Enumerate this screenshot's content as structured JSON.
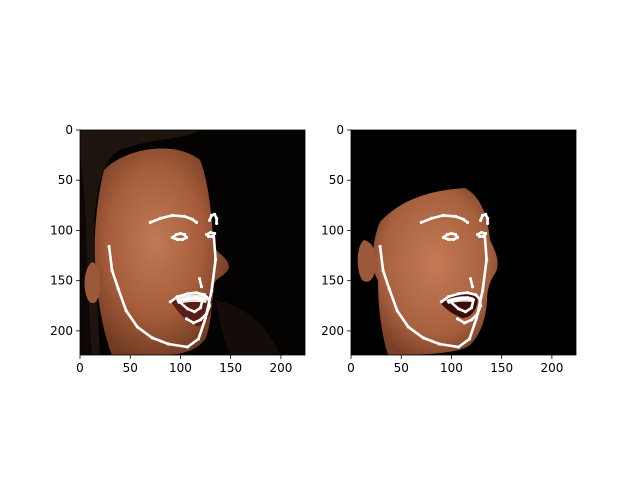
{
  "figure": {
    "background": "#ffffff"
  },
  "chart_data": [
    {
      "type": "image",
      "panel": "left",
      "content": "photograph of face with facial landmark overlay",
      "xlim": [
        0,
        224
      ],
      "ylim": [
        224,
        0
      ],
      "xticks": [
        0,
        50,
        100,
        150,
        200
      ],
      "yticks": [
        0,
        50,
        100,
        150,
        200
      ],
      "xtick_labels": [
        "0",
        "50",
        "100",
        "150",
        "200"
      ],
      "ytick_labels": [
        "0",
        "50",
        "100",
        "150",
        "200"
      ],
      "landmark_color": "#ffffff",
      "landmarks": {
        "jaw": [
          [
            29,
            116
          ],
          [
            32,
            140
          ],
          [
            38,
            158
          ],
          [
            46,
            180
          ],
          [
            57,
            196
          ],
          [
            72,
            207
          ],
          [
            88,
            213
          ],
          [
            107,
            216
          ],
          [
            118,
            208
          ],
          [
            125,
            187
          ],
          [
            131,
            160
          ],
          [
            135,
            129
          ],
          [
            133,
            103
          ]
        ],
        "brow_right": [
          [
            70,
            92
          ],
          [
            80,
            88
          ],
          [
            92,
            85
          ],
          [
            104,
            86
          ],
          [
            112,
            89
          ],
          [
            116,
            92
          ]
        ],
        "brow_left": [
          [
            129,
            90
          ],
          [
            131,
            85
          ],
          [
            134,
            84
          ],
          [
            136,
            88
          ],
          [
            136,
            93
          ]
        ],
        "eye_right": [
          [
            92,
            107
          ],
          [
            96,
            104
          ],
          [
            100,
            103
          ],
          [
            104,
            104
          ],
          [
            106,
            107
          ],
          [
            102,
            109
          ],
          [
            97,
            109
          ]
        ],
        "eye_left": [
          [
            126,
            104
          ],
          [
            130,
            102
          ],
          [
            134,
            103
          ],
          [
            132,
            106
          ],
          [
            128,
            106
          ]
        ],
        "nose": [
          [
            119,
            148
          ],
          [
            121,
            156
          ]
        ],
        "mouth_outer": [
          [
            90,
            171
          ],
          [
            97,
            166
          ],
          [
            107,
            163
          ],
          [
            116,
            162
          ],
          [
            124,
            164
          ],
          [
            128,
            168
          ],
          [
            129,
            175
          ],
          [
            126,
            183
          ],
          [
            120,
            189
          ],
          [
            113,
            192
          ],
          [
            106,
            188
          ]
        ],
        "mouth_inner": [
          [
            98,
            170
          ],
          [
            107,
            168
          ],
          [
            116,
            167
          ],
          [
            122,
            169
          ],
          [
            120,
            177
          ],
          [
            114,
            181
          ],
          [
            107,
            178
          ]
        ]
      }
    },
    {
      "type": "image",
      "panel": "right",
      "content": "3D face reconstruction render with facial landmark overlay",
      "xlim": [
        0,
        224
      ],
      "ylim": [
        224,
        0
      ],
      "xticks": [
        0,
        50,
        100,
        150,
        200
      ],
      "yticks": [
        0,
        50,
        100,
        150,
        200
      ],
      "xtick_labels": [
        "0",
        "50",
        "100",
        "150",
        "200"
      ],
      "ytick_labels": [
        "0",
        "50",
        "100",
        "150",
        "200"
      ],
      "landmark_color": "#ffffff",
      "landmarks": {
        "jaw": [
          [
            29,
            116
          ],
          [
            32,
            140
          ],
          [
            38,
            158
          ],
          [
            46,
            180
          ],
          [
            57,
            196
          ],
          [
            72,
            207
          ],
          [
            88,
            213
          ],
          [
            107,
            216
          ],
          [
            118,
            208
          ],
          [
            125,
            187
          ],
          [
            131,
            160
          ],
          [
            135,
            129
          ],
          [
            133,
            103
          ]
        ],
        "brow_right": [
          [
            70,
            92
          ],
          [
            80,
            88
          ],
          [
            92,
            85
          ],
          [
            104,
            86
          ],
          [
            112,
            89
          ],
          [
            116,
            92
          ]
        ],
        "brow_left": [
          [
            129,
            90
          ],
          [
            131,
            85
          ],
          [
            134,
            84
          ],
          [
            136,
            88
          ],
          [
            136,
            93
          ]
        ],
        "eye_right": [
          [
            92,
            107
          ],
          [
            96,
            104
          ],
          [
            100,
            103
          ],
          [
            104,
            104
          ],
          [
            106,
            107
          ],
          [
            102,
            109
          ],
          [
            97,
            109
          ]
        ],
        "eye_left": [
          [
            126,
            104
          ],
          [
            130,
            102
          ],
          [
            134,
            103
          ],
          [
            132,
            106
          ],
          [
            128,
            106
          ]
        ],
        "nose": [
          [
            119,
            148
          ],
          [
            121,
            156
          ]
        ],
        "mouth_outer": [
          [
            90,
            171
          ],
          [
            97,
            166
          ],
          [
            107,
            163
          ],
          [
            116,
            162
          ],
          [
            124,
            164
          ],
          [
            128,
            168
          ],
          [
            129,
            175
          ],
          [
            126,
            183
          ],
          [
            120,
            189
          ],
          [
            113,
            192
          ],
          [
            106,
            188
          ]
        ],
        "mouth_inner": [
          [
            98,
            170
          ],
          [
            107,
            168
          ],
          [
            116,
            167
          ],
          [
            122,
            169
          ],
          [
            120,
            177
          ],
          [
            114,
            181
          ],
          [
            107,
            178
          ]
        ]
      }
    }
  ]
}
